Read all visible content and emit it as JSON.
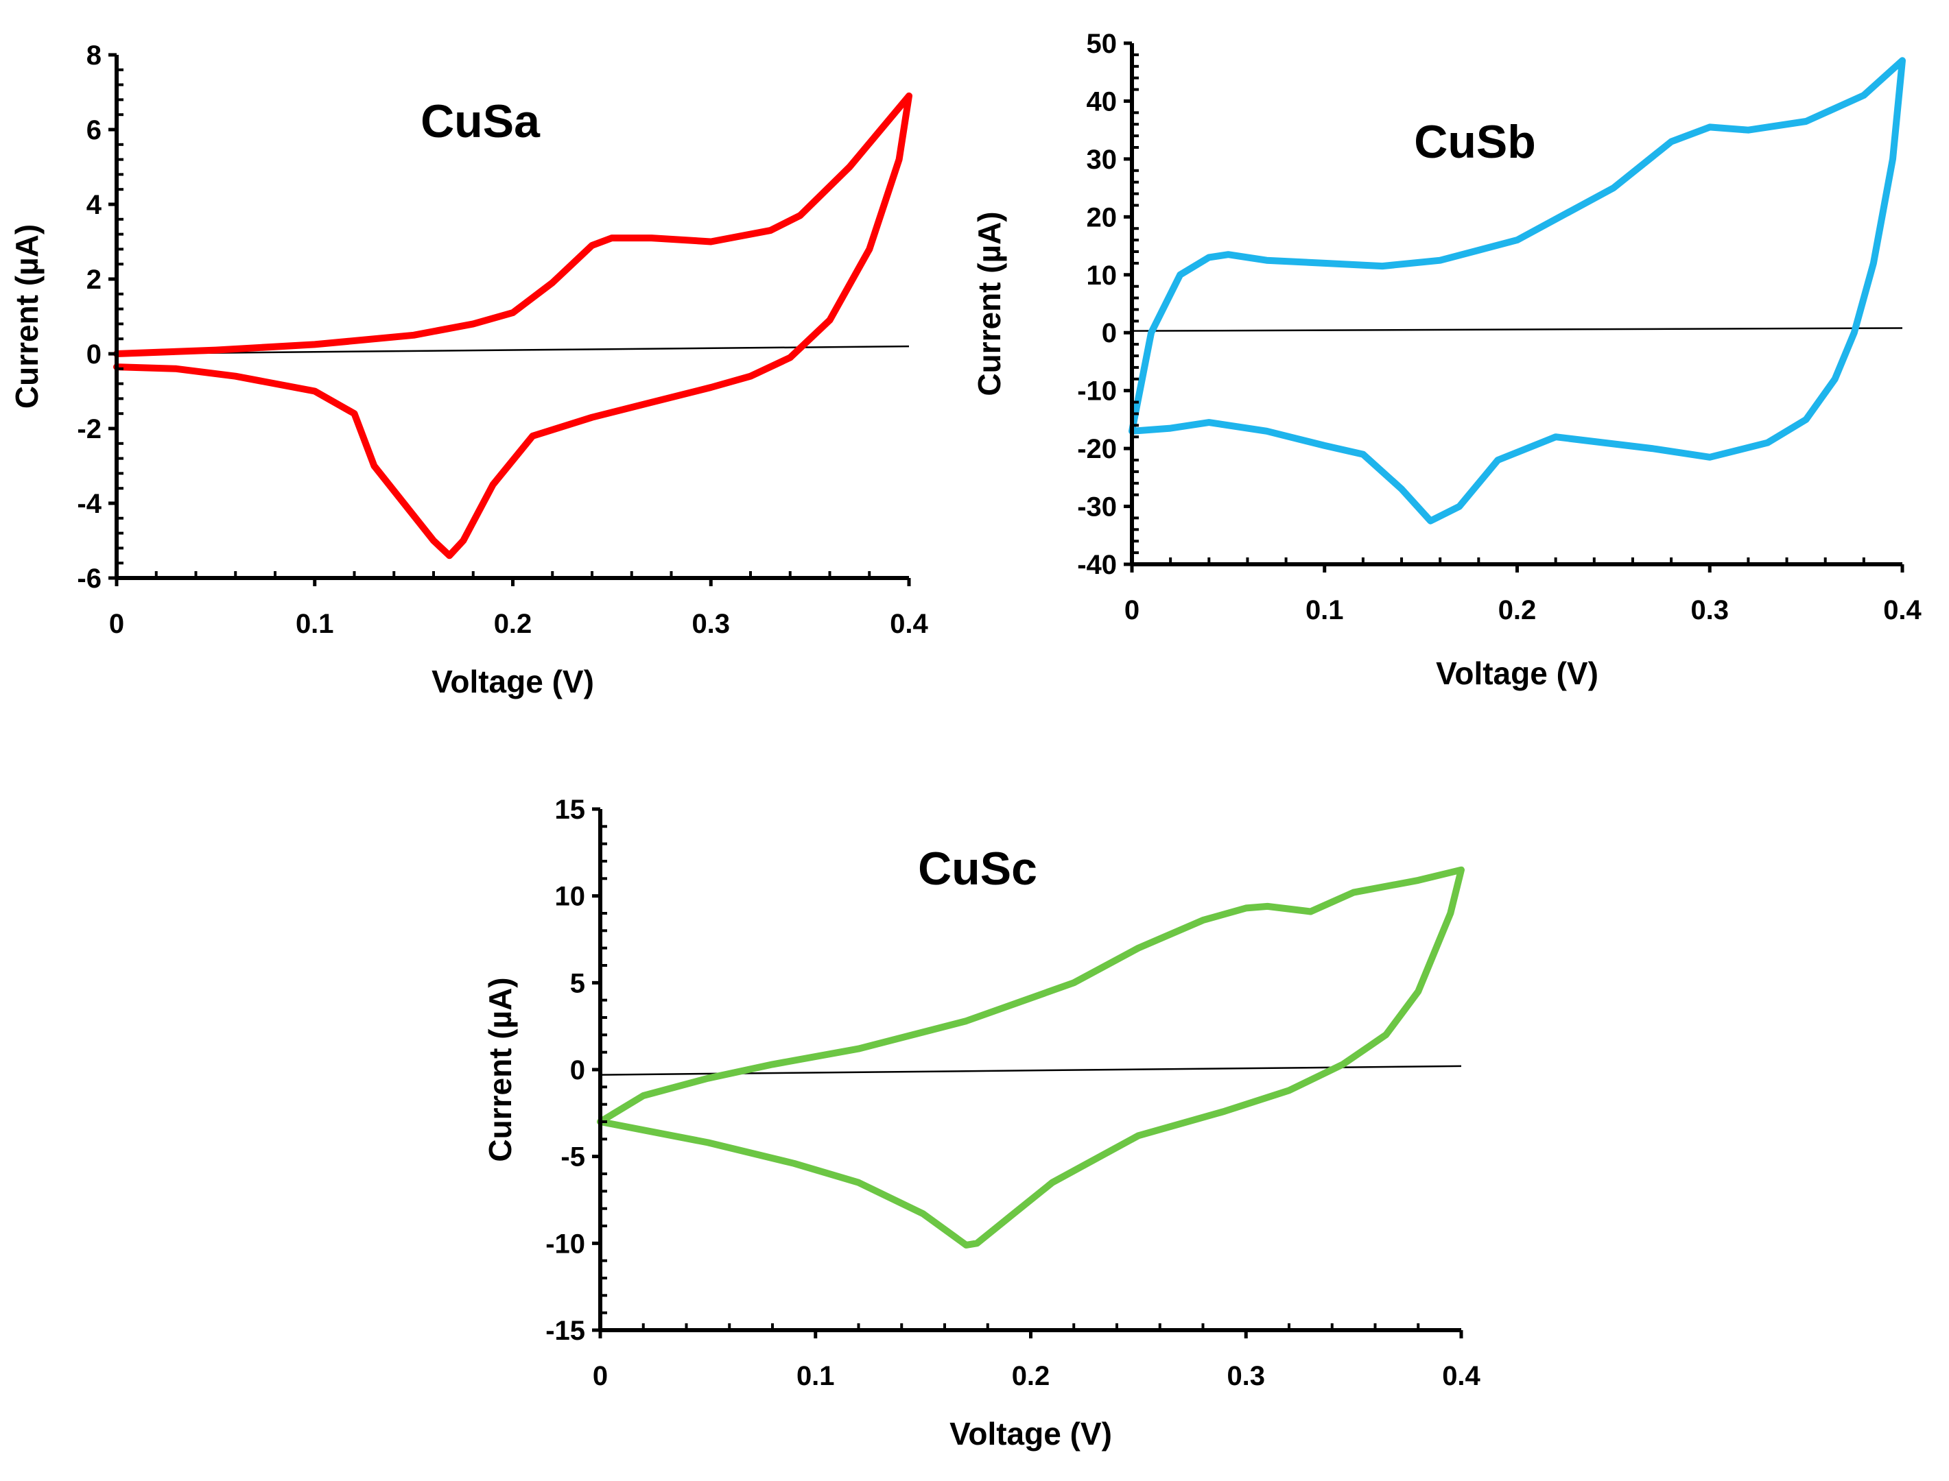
{
  "chart_data": [
    {
      "type": "line",
      "id": "cusa",
      "title": "CuSa",
      "xlabel": "Voltage (V)",
      "ylabel": "Current  (µA)",
      "xlim": [
        0,
        0.4
      ],
      "ylim": [
        -6,
        8
      ],
      "xticks": [
        "0",
        "0.1",
        "0.2",
        "0.3",
        "0.4"
      ],
      "yticks": [
        "-6",
        "-4",
        "-2",
        "0",
        "2",
        "4",
        "6",
        "8"
      ],
      "grid": false,
      "color": "#ff0000",
      "baseline": {
        "x": [
          0,
          0.4
        ],
        "y": [
          0.0,
          0.2
        ]
      },
      "series": [
        {
          "name": "CuSa",
          "x": [
            0.0,
            0.05,
            0.1,
            0.15,
            0.18,
            0.2,
            0.22,
            0.24,
            0.25,
            0.27,
            0.3,
            0.33,
            0.345,
            0.37,
            0.4,
            0.395,
            0.38,
            0.36,
            0.34,
            0.32,
            0.3,
            0.27,
            0.24,
            0.21,
            0.19,
            0.175,
            0.168,
            0.16,
            0.145,
            0.13,
            0.12,
            0.1,
            0.06,
            0.03,
            0.0
          ],
          "y": [
            0.0,
            0.1,
            0.25,
            0.5,
            0.8,
            1.1,
            1.9,
            2.9,
            3.1,
            3.1,
            3.0,
            3.3,
            3.7,
            5.0,
            6.9,
            5.2,
            2.8,
            0.9,
            -0.1,
            -0.6,
            -0.9,
            -1.3,
            -1.7,
            -2.2,
            -3.5,
            -5.0,
            -5.4,
            -5.0,
            -4.0,
            -3.0,
            -1.6,
            -1.0,
            -0.6,
            -0.4,
            -0.35
          ]
        }
      ]
    },
    {
      "type": "line",
      "id": "cusb",
      "title": "CuSb",
      "xlabel": "Voltage (V)",
      "ylabel": "Current  (µA)",
      "xlim": [
        0,
        0.4
      ],
      "ylim": [
        -40,
        50
      ],
      "xticks": [
        "0",
        "0.1",
        "0.2",
        "0.3",
        "0.4"
      ],
      "yticks": [
        "-40",
        "-30",
        "-20",
        "-10",
        "0",
        "10",
        "20",
        "30",
        "40",
        "50"
      ],
      "grid": false,
      "color": "#1eb4ec",
      "baseline": {
        "x": [
          0,
          0.4
        ],
        "y": [
          0.3,
          0.8
        ]
      },
      "series": [
        {
          "name": "CuSb",
          "x": [
            0.0,
            0.01,
            0.025,
            0.04,
            0.05,
            0.07,
            0.1,
            0.13,
            0.16,
            0.2,
            0.25,
            0.28,
            0.3,
            0.32,
            0.35,
            0.38,
            0.4,
            0.395,
            0.385,
            0.375,
            0.365,
            0.35,
            0.33,
            0.3,
            0.27,
            0.22,
            0.19,
            0.17,
            0.155,
            0.14,
            0.12,
            0.1,
            0.07,
            0.04,
            0.02,
            0.0
          ],
          "y": [
            -17,
            0,
            10,
            13,
            13.5,
            12.5,
            12,
            11.5,
            12.5,
            16,
            25,
            33,
            35.5,
            35,
            36.5,
            41,
            47,
            30,
            12,
            0,
            -8,
            -15,
            -19,
            -21.5,
            -20,
            -18,
            -22,
            -30,
            -32.5,
            -27,
            -21,
            -19.5,
            -17,
            -15.5,
            -16.5,
            -17
          ]
        }
      ]
    },
    {
      "type": "line",
      "id": "cusc",
      "title": "CuSc",
      "xlabel": "Voltage (V)",
      "ylabel": "Current  (µA)",
      "xlim": [
        0,
        0.4
      ],
      "ylim": [
        -15,
        15
      ],
      "xticks": [
        "0",
        "0.1",
        "0.2",
        "0.3",
        "0.4"
      ],
      "yticks": [
        "-15",
        "-10",
        "-5",
        "0",
        "5",
        "10",
        "15"
      ],
      "grid": false,
      "color": "#6cc644",
      "baseline": {
        "x": [
          0,
          0.4
        ],
        "y": [
          -0.3,
          0.2
        ]
      },
      "series": [
        {
          "name": "CuSc",
          "x": [
            0.0,
            0.02,
            0.05,
            0.08,
            0.12,
            0.17,
            0.22,
            0.25,
            0.28,
            0.3,
            0.31,
            0.33,
            0.35,
            0.38,
            0.4,
            0.395,
            0.38,
            0.365,
            0.345,
            0.32,
            0.29,
            0.25,
            0.21,
            0.19,
            0.175,
            0.17,
            0.15,
            0.12,
            0.09,
            0.05,
            0.0
          ],
          "y": [
            -3.0,
            -1.5,
            -0.5,
            0.3,
            1.2,
            2.8,
            5.0,
            7.0,
            8.6,
            9.3,
            9.4,
            9.1,
            10.2,
            10.9,
            11.5,
            9.0,
            4.5,
            2.0,
            0.3,
            -1.2,
            -2.4,
            -3.8,
            -6.5,
            -8.5,
            -10.0,
            -10.1,
            -8.3,
            -6.5,
            -5.4,
            -4.2,
            -3.0
          ]
        }
      ]
    }
  ]
}
